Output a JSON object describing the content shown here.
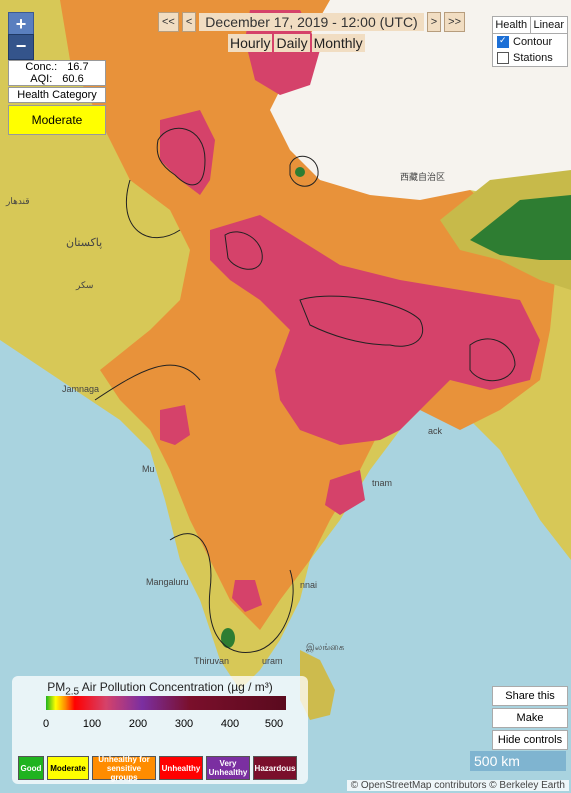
{
  "date_label": "December 17, 2019 - 12:00 (UTC)",
  "nav": {
    "first": "<<",
    "prev": "<",
    "next": ">",
    "last": ">>"
  },
  "modes": [
    "Hourly",
    "Daily",
    "Monthly"
  ],
  "zoom": {
    "in": "+",
    "out": "−"
  },
  "info": {
    "conc_label": "Conc.:",
    "conc_value": "16.7",
    "aqi_label": "AQI:",
    "aqi_value": "60.6"
  },
  "health": {
    "label": "Health Category",
    "value": "Moderate"
  },
  "right_panel": {
    "tabs": [
      "Health",
      "Linear"
    ],
    "contour_label": "Contour",
    "contour_checked": true,
    "stations_label": "Stations",
    "stations_checked": false
  },
  "legend": {
    "title_prefix": "PM",
    "title_sub": "2.5",
    "title_suffix": " Air Pollution Concentration (µg / m³)",
    "ticks": [
      "0",
      "100",
      "200",
      "300",
      "400",
      "500"
    ],
    "categories": [
      {
        "label": "Good",
        "color": "#1fb31f"
      },
      {
        "label": "Moderate",
        "color": "#ffff00"
      },
      {
        "label": "Unhealthy for sensitive groups",
        "color": "#ff8c00"
      },
      {
        "label": "Unhealthy",
        "color": "#ff0000"
      },
      {
        "label": "Very Unhealthy",
        "color": "#7b2fa1"
      },
      {
        "label": "Hazardous",
        "color": "#7a0f2b"
      }
    ]
  },
  "buttons": {
    "share": "Share this view",
    "fullscreen": "Make fullscreen",
    "hide": "Hide controls"
  },
  "scale": "500 km",
  "attribution": "© OpenStreetMap contributors © Berkeley Earth",
  "map_labels": {
    "tibet": "西藏自治区",
    "pakistan": "پاکستان",
    "mumbai": "Mu",
    "mangaluru": "Mangaluru",
    "chennai": "nnai",
    "thiruvananthapuram": "Thiruvan",
    "thiruvananthapuram2": "uram",
    "ilankai": "இலங்கை",
    "jamnagar": "Jamnaga",
    "dhaka": "ack",
    "vietnam": "tnam",
    "sindh": "سکر",
    "afg": "قندهار"
  }
}
